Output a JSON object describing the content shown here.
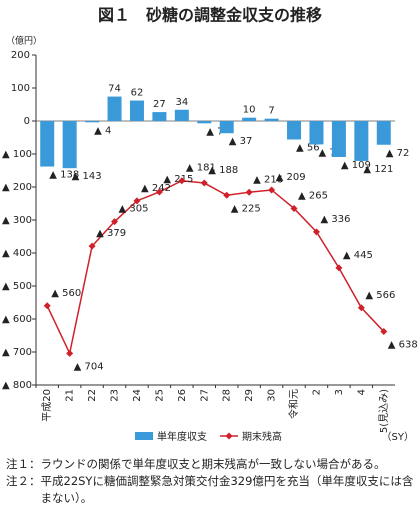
{
  "chart_data": {
    "type": "bar-line",
    "title": "図１　砂糖の調整金収支の推移",
    "y_unit": "（億円）",
    "x_unit": "（SY）",
    "categories": [
      "平成20",
      "21",
      "22",
      "23",
      "24",
      "25",
      "26",
      "27",
      "28",
      "29",
      "30",
      "令和元",
      "2",
      "3",
      "4",
      "5(見込み)"
    ],
    "series": [
      {
        "name": "単年度収支",
        "type": "bar",
        "color": "#3a9ad9",
        "values": [
          -138,
          -143,
          -4,
          74,
          62,
          27,
          34,
          -7,
          -37,
          10,
          7,
          -56,
          -71,
          -109,
          -121,
          -72
        ],
        "value_labels": [
          "▲ 138",
          "▲ 143",
          "▲ 4",
          "74",
          "62",
          "27",
          "34",
          "▲ 7",
          "▲ 37",
          "10",
          "7",
          "▲ 56",
          "▲ 71",
          "▲ 109",
          "▲ 121",
          "▲ 72"
        ]
      },
      {
        "name": "期末残高",
        "type": "line",
        "color": "#d0212a",
        "values": [
          -560,
          -704,
          -379,
          -305,
          -242,
          -215,
          -181,
          -188,
          -225,
          -216,
          -209,
          -265,
          -336,
          -445,
          -566,
          -638
        ],
        "value_labels": [
          "▲ 560",
          "▲ 704",
          "▲ 379",
          "▲ 305",
          "▲ 242",
          "▲ 215",
          "▲ 181",
          "▲ 188",
          "▲ 225",
          "▲ 216",
          "▲ 209",
          "▲ 265",
          "▲ 336",
          "▲ 445",
          "▲ 566",
          "▲ 638"
        ]
      }
    ],
    "ylim": [
      -800,
      200
    ],
    "yticks": [
      200,
      100,
      0,
      {
        "value": -100,
        "label": "▲ 100"
      },
      {
        "value": -200,
        "label": "▲ 200"
      },
      {
        "value": -300,
        "label": "▲ 300"
      },
      {
        "value": -400,
        "label": "▲ 400"
      },
      {
        "value": -500,
        "label": "▲ 500"
      },
      {
        "value": -600,
        "label": "▲ 600"
      },
      {
        "value": -700,
        "label": "▲ 700"
      },
      {
        "value": -800,
        "label": "▲ 800"
      }
    ],
    "grid": false
  },
  "notes": [
    {
      "label": "注１：",
      "text": "ラウンドの関係で単年度収支と期末残高が一致しない場合がある。"
    },
    {
      "label": "注２：",
      "text": "平成22SYに糖価調整緊急対策交付金329億円を充当（単年度収支には含まない）。"
    }
  ]
}
